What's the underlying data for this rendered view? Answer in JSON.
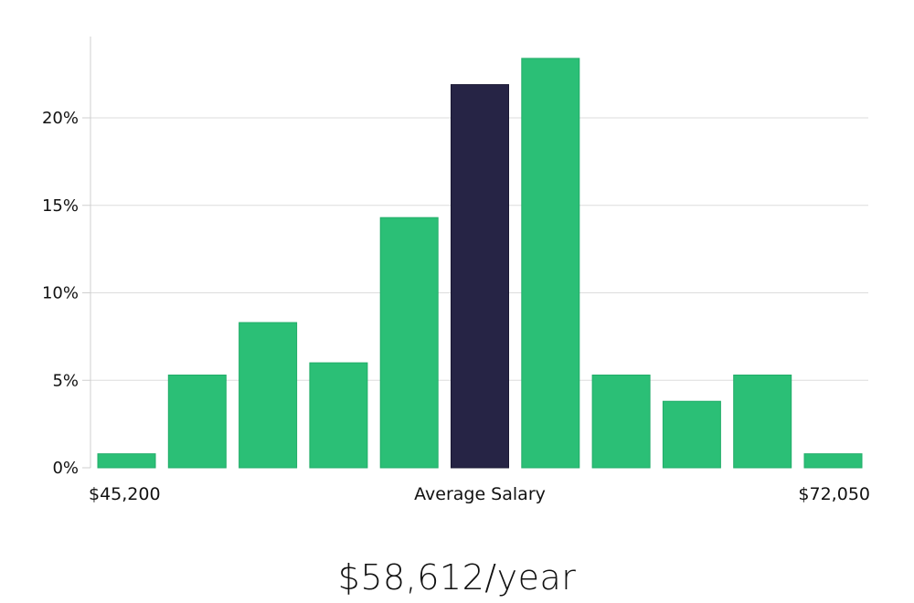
{
  "chart_data": {
    "type": "bar",
    "title": "",
    "xlabel": "Average Salary",
    "ylabel": "",
    "x_min_label": "$45,200",
    "x_max_label": "$72,050",
    "ylim": [
      0,
      25
    ],
    "yticks": [
      0,
      5,
      10,
      15,
      20
    ],
    "ytick_labels": [
      "0%",
      "5%",
      "10%",
      "15%",
      "20%"
    ],
    "values": [
      0.8,
      5.3,
      8.3,
      6.0,
      14.3,
      21.9,
      23.4,
      5.3,
      3.8,
      5.3,
      0.8
    ],
    "highlight_index": 5,
    "bar_color": "#2bbf76",
    "highlight_color": "#262445",
    "grid_color": "#dddddd"
  },
  "summary": {
    "salary_text": "$58,612/year"
  }
}
